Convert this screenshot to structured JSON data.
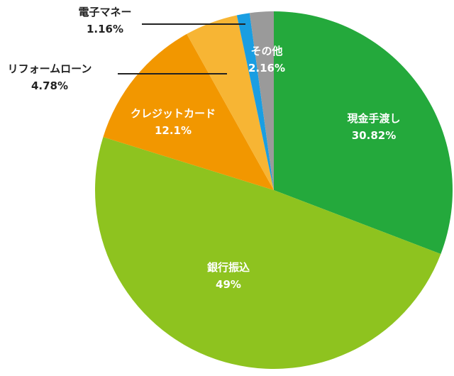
{
  "chart_data": {
    "type": "pie",
    "title": "",
    "start": "top",
    "direction": "clockwise",
    "slices": [
      {
        "label": "現金手渡し",
        "value": 30.82,
        "value_label": "30.82%",
        "color": "#24a93c",
        "label_pos": "inside"
      },
      {
        "label": "銀行振込",
        "value": 49,
        "value_label": "49%",
        "color": "#8ec31f",
        "label_pos": "inside"
      },
      {
        "label": "クレジットカード",
        "value": 12.1,
        "value_label": "12.1%",
        "color": "#f29700",
        "label_pos": "inside"
      },
      {
        "label": "リフォームローン",
        "value": 4.78,
        "value_label": "4.78%",
        "color": "#f7b534",
        "label_pos": "outside"
      },
      {
        "label": "電子マネー",
        "value": 1.16,
        "value_label": "1.16%",
        "color": "#1a9ee2",
        "label_pos": "outside"
      },
      {
        "label": "その他",
        "value": 2.16,
        "value_label": "2.16%",
        "color": "#9a9a9a",
        "label_pos": "inside"
      }
    ]
  }
}
